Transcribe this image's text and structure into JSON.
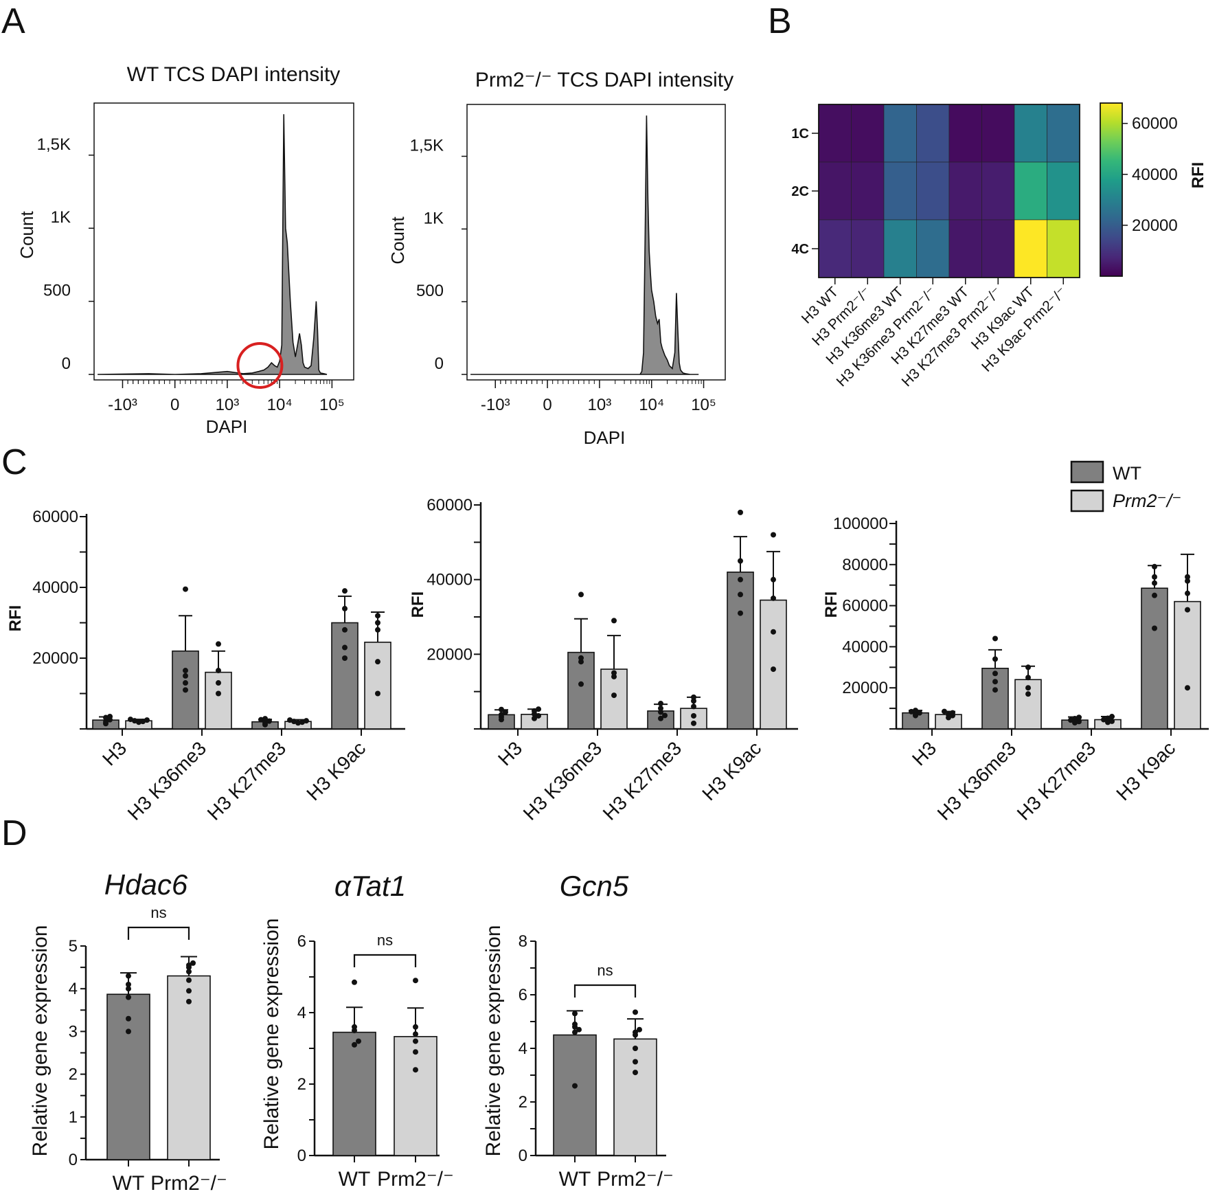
{
  "panels": {
    "A": "A",
    "B": "B",
    "C": "C",
    "D": "D"
  },
  "colors": {
    "wt": "#808080",
    "ko": "#d3d3d3",
    "highlight": "#d82020",
    "hist_fill": "#8c8c8c"
  },
  "panel_a": {
    "left": {
      "title": "WT TCS DAPI intensity",
      "ylabel": "Count",
      "xlabel": "DAPI",
      "yticks": [
        "0",
        "500",
        "1K",
        "1,5K"
      ],
      "xticks": [
        "-10³",
        "0",
        "10³",
        "10⁴",
        "10⁵"
      ]
    },
    "right": {
      "title": "Prm2⁻/⁻ TCS DAPI intensity",
      "ylabel": "Count",
      "xlabel": "DAPI",
      "yticks": [
        "0",
        "500",
        "1K",
        "1,5K"
      ],
      "xticks": [
        "-10³",
        "0",
        "10³",
        "10⁴",
        "10⁵"
      ]
    }
  },
  "panel_b": {
    "rows": [
      "1C",
      "2C",
      "4C"
    ],
    "columns": [
      "H3 WT",
      "H3 Prm2⁻/⁻",
      "H3 K36me3 WT",
      "H3 K36me3 Prm2⁻/⁻",
      "H3 K27me3 WT",
      "H3 K27me3 Prm2⁻/⁻",
      "H3 K9ac WT",
      "H3 K9ac Prm2⁻/⁻"
    ],
    "colorbar_label": "RFI",
    "colorbar_ticks": [
      "20000",
      "40000",
      "60000"
    ]
  },
  "panel_c": {
    "ylabel": "RFI",
    "legend": {
      "wt": "WT",
      "ko": "Prm2⁻/⁻"
    },
    "categories": [
      "H3",
      "H3 K36me3",
      "H3 K27me3",
      "H3 K9ac"
    ]
  },
  "panel_d": {
    "ylabel": "Relative gene expression",
    "categories": [
      "WT",
      "Prm2⁻/⁻"
    ],
    "significance": "ns"
  },
  "chart_data": [
    {
      "id": "A-left",
      "type": "area",
      "title": "WT TCS DAPI intensity",
      "xlabel": "DAPI",
      "ylabel": "Count",
      "xscale": "biexponential",
      "ylim": [
        0,
        1800
      ],
      "x": [
        -3000,
        -500,
        0,
        500,
        1000,
        2000,
        3000,
        4000,
        5000,
        6000,
        7000,
        8000,
        9000,
        10000,
        11000,
        12000,
        13000,
        14000,
        16000,
        18000,
        20000,
        22000,
        24000,
        26000,
        28000,
        30000,
        35000,
        40000,
        45000,
        50000,
        53000,
        56000,
        60000,
        70000,
        80000
      ],
      "y": [
        0,
        5,
        0,
        5,
        20,
        5,
        10,
        20,
        30,
        50,
        80,
        60,
        50,
        90,
        200,
        1780,
        1000,
        900,
        500,
        220,
        120,
        200,
        280,
        200,
        80,
        50,
        40,
        60,
        250,
        500,
        300,
        30,
        10,
        5,
        0
      ]
    },
    {
      "id": "A-right",
      "type": "area",
      "title": "Prm2⁻/⁻ TCS DAPI intensity",
      "xlabel": "DAPI",
      "ylabel": "Count",
      "xscale": "biexponential",
      "ylim": [
        0,
        1800
      ],
      "x": [
        -3000,
        -500,
        0,
        500,
        2000,
        5000,
        6000,
        6500,
        7000,
        7500,
        8000,
        8500,
        9000,
        9500,
        10000,
        11000,
        12000,
        13000,
        14000,
        15000,
        16000,
        18000,
        20000,
        22000,
        25000,
        28000,
        30000,
        32000,
        34000,
        36000,
        40000,
        45000,
        55000,
        80000
      ],
      "y": [
        0,
        0,
        0,
        0,
        0,
        0,
        0,
        20,
        150,
        900,
        1780,
        1200,
        850,
        700,
        580,
        500,
        400,
        350,
        380,
        220,
        180,
        130,
        100,
        60,
        40,
        150,
        560,
        300,
        80,
        30,
        10,
        5,
        0,
        0
      ]
    },
    {
      "id": "B",
      "type": "heatmap",
      "rows": [
        "1C",
        "2C",
        "4C"
      ],
      "columns": [
        "H3 WT",
        "H3 Prm2⁻/⁻",
        "H3 K36me3 WT",
        "H3 K36me3 Prm2⁻/⁻",
        "H3 K27me3 WT",
        "H3 K27me3 Prm2⁻/⁻",
        "H3 K9ac WT",
        "H3 K9ac Prm2⁻/⁻"
      ],
      "values": [
        [
          2500,
          2300,
          22000,
          16000,
          2000,
          2100,
          30000,
          24500
        ],
        [
          3800,
          3900,
          20500,
          16000,
          4800,
          5500,
          42000,
          34500
        ],
        [
          7800,
          7000,
          29500,
          24000,
          4300,
          4500,
          68500,
          62000
        ]
      ],
      "colorbar": {
        "label": "RFI",
        "range": [
          0,
          68000
        ],
        "ticks": [
          20000,
          40000,
          60000
        ]
      }
    },
    {
      "id": "C-1C",
      "type": "bar",
      "ylabel": "RFI",
      "ylim": [
        0,
        60000
      ],
      "yticks": [
        20000,
        40000,
        60000
      ],
      "categories": [
        "H3",
        "H3 K36me3",
        "H3 K27me3",
        "H3 K9ac"
      ],
      "series": [
        {
          "name": "WT",
          "values": [
            2500,
            22000,
            2000,
            30000
          ],
          "error": [
            900,
            10000,
            700,
            7500
          ],
          "points": [
            [
              1500,
              2000,
              2600,
              3200,
              3500
            ],
            [
              11000,
              13000,
              15000,
              16500,
              39500
            ],
            [
              1200,
              1700,
              2200,
              2600,
              2900
            ],
            [
              20000,
              23000,
              28000,
              34000,
              39000
            ]
          ]
        },
        {
          "name": "Prm2⁻/⁻",
          "values": [
            2300,
            16000,
            2100,
            24500
          ],
          "error": [
            400,
            6000,
            500,
            8500
          ],
          "points": [
            [
              1900,
              2100,
              2300,
              2500,
              2700
            ],
            [
              10000,
              13000,
              16500,
              24000
            ],
            [
              1700,
              1900,
              2100,
              2300,
              2500
            ],
            [
              10000,
              19000,
              28000,
              30000,
              32000
            ]
          ]
        }
      ]
    },
    {
      "id": "C-2C",
      "type": "bar",
      "ylabel": "RFI",
      "ylim": [
        0,
        60000
      ],
      "yticks": [
        20000,
        40000,
        60000
      ],
      "categories": [
        "H3",
        "H3 K36me3",
        "H3 K27me3",
        "H3 K9ac"
      ],
      "series": [
        {
          "name": "WT",
          "values": [
            3800,
            20500,
            4800,
            42000
          ],
          "error": [
            1300,
            9000,
            1800,
            9500
          ],
          "points": [
            [
              2500,
              3200,
              3800,
              4500,
              5200
            ],
            [
              12000,
              18000,
              19000,
              36000
            ],
            [
              2800,
              3600,
              4500,
              5500,
              6800
            ],
            [
              31000,
              36000,
              40000,
              45000,
              58000
            ]
          ]
        },
        {
          "name": "Prm2⁻/⁻",
          "values": [
            3900,
            16000,
            5500,
            34500
          ],
          "error": [
            1400,
            9000,
            3000,
            13000
          ],
          "points": [
            [
              2800,
              3500,
              4000,
              4800,
              5300
            ],
            [
              9000,
              14000,
              15000,
              29000
            ],
            [
              1500,
              3500,
              6000,
              7500,
              8500
            ],
            [
              16000,
              26000,
              35000,
              40000,
              52000
            ]
          ]
        }
      ]
    },
    {
      "id": "C-4C",
      "type": "bar",
      "ylabel": "RFI",
      "ylim": [
        0,
        100000
      ],
      "yticks": [
        20000,
        40000,
        60000,
        80000,
        100000
      ],
      "categories": [
        "H3",
        "H3 K36me3",
        "H3 K27me3",
        "H3 K9ac"
      ],
      "series": [
        {
          "name": "WT",
          "values": [
            7800,
            29500,
            4300,
            68500
          ],
          "error": [
            1200,
            9000,
            1500,
            11000
          ],
          "points": [
            [
              6500,
              7000,
              7800,
              8400,
              9000
            ],
            [
              19000,
              23000,
              27000,
              34000,
              44000
            ],
            [
              3000,
              3600,
              4300,
              5000,
              5600
            ],
            [
              49000,
              65000,
              71000,
              74000,
              79000
            ]
          ]
        },
        {
          "name": "Prm2⁻/⁻",
          "values": [
            7000,
            24000,
            4500,
            62000
          ],
          "error": [
            1500,
            6500,
            1500,
            23000
          ],
          "points": [
            [
              5500,
              6500,
              7000,
              7800,
              8500
            ],
            [
              17000,
              20000,
              25000,
              30000
            ],
            [
              3200,
              3700,
              4500,
              5200,
              6000
            ],
            [
              20000,
              58000,
              66000,
              72000,
              74000
            ]
          ]
        }
      ]
    },
    {
      "id": "D-Hdac6",
      "type": "bar",
      "title": "Hdac6",
      "ylabel": "Relative gene expression",
      "ylim": [
        0,
        5
      ],
      "yticks": [
        0,
        1,
        2,
        3,
        4,
        5
      ],
      "categories": [
        "WT",
        "Prm2⁻/⁻"
      ],
      "values": [
        3.87,
        4.3
      ],
      "error": [
        0.5,
        0.45
      ],
      "points": [
        [
          3.0,
          3.3,
          3.8,
          4.0,
          4.1,
          4.3
        ],
        [
          3.7,
          3.95,
          4.2,
          4.4,
          4.5,
          4.55,
          4.6
        ]
      ],
      "significance": "ns"
    },
    {
      "id": "D-aTat1",
      "type": "bar",
      "title": "αTat1",
      "ylabel": "Relative gene expression",
      "ylim": [
        0,
        6
      ],
      "yticks": [
        0,
        2,
        4,
        6
      ],
      "categories": [
        "WT",
        "Prm2⁻/⁻"
      ],
      "values": [
        3.45,
        3.33
      ],
      "error": [
        0.7,
        0.8
      ],
      "points": [
        [
          3.1,
          3.2,
          3.5,
          3.6,
          4.85
        ],
        [
          2.4,
          2.9,
          3.2,
          3.4,
          3.6,
          4.9
        ]
      ],
      "significance": "ns"
    },
    {
      "id": "D-Gcn5",
      "type": "bar",
      "title": "Gcn5",
      "ylabel": "Relative gene expression",
      "ylim": [
        0,
        8
      ],
      "yticks": [
        0,
        2,
        4,
        6,
        8
      ],
      "categories": [
        "WT",
        "Prm2⁻/⁻"
      ],
      "values": [
        4.5,
        4.35
      ],
      "error": [
        0.9,
        0.75
      ],
      "points": [
        [
          2.6,
          4.6,
          4.7,
          4.8,
          4.9,
          5.3
        ],
        [
          3.1,
          3.5,
          4.0,
          4.5,
          4.6,
          4.7,
          5.35
        ]
      ],
      "significance": "ns"
    }
  ]
}
